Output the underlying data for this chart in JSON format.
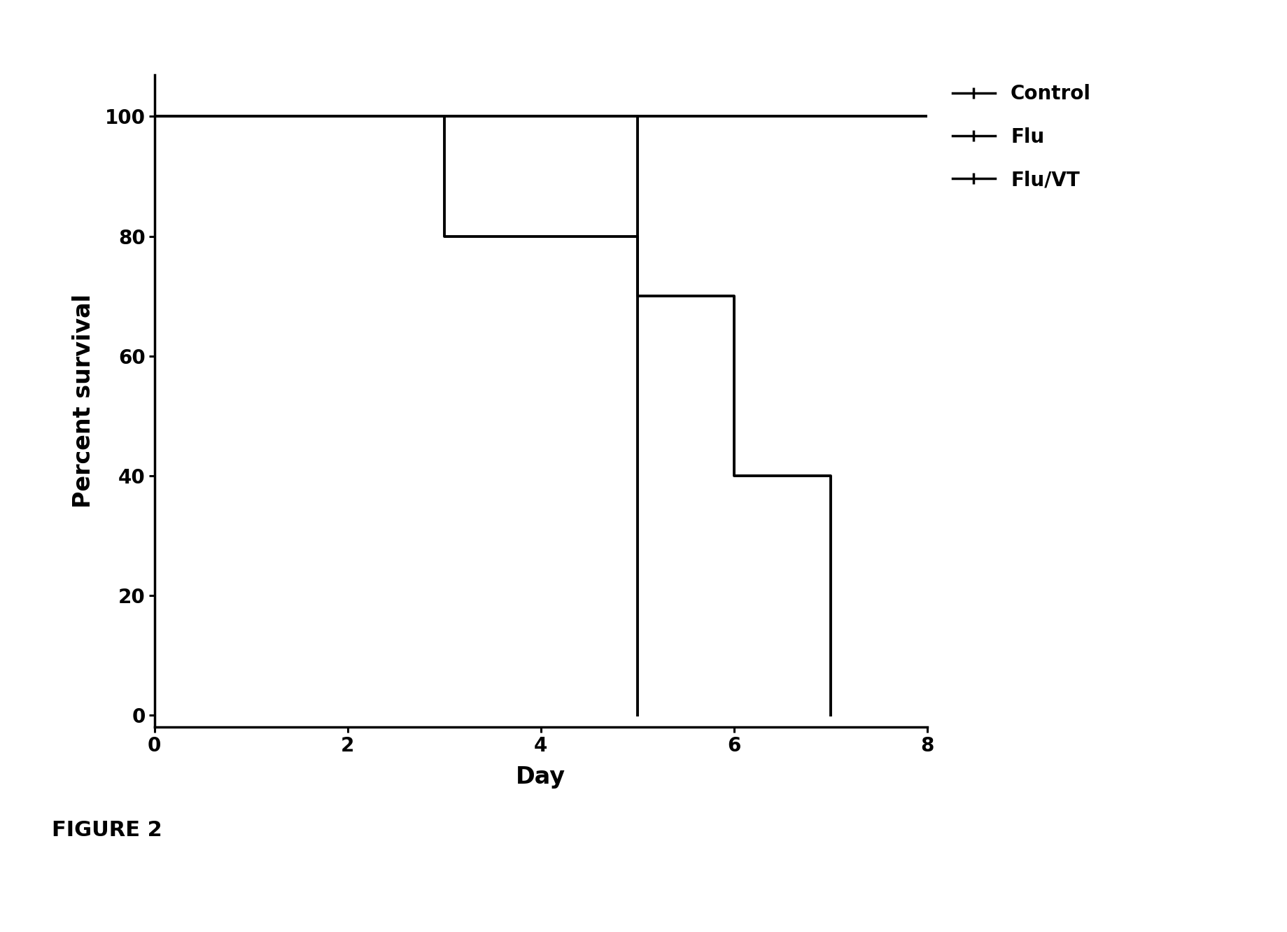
{
  "xlabel": "Day",
  "ylabel": "Percent survival",
  "figure_caption": "FIGURE 2",
  "xlim": [
    0,
    8
  ],
  "ylim": [
    -2,
    107
  ],
  "yticks": [
    0,
    20,
    40,
    60,
    80,
    100
  ],
  "xticks": [
    0,
    2,
    4,
    6,
    8
  ],
  "control": {
    "x": [
      0,
      8
    ],
    "y": [
      100,
      100
    ],
    "label": "Control",
    "color": "#000000",
    "linewidth": 2.8
  },
  "flu": {
    "x": [
      0,
      3,
      3,
      5,
      5
    ],
    "y": [
      100,
      100,
      80,
      80,
      0
    ],
    "label": "Flu",
    "color": "#000000",
    "linewidth": 2.8
  },
  "flu_vt": {
    "x": [
      0,
      5,
      5,
      6,
      6,
      7,
      7
    ],
    "y": [
      100,
      100,
      70,
      70,
      40,
      40,
      0
    ],
    "label": "Flu/VT",
    "color": "#000000",
    "linewidth": 2.8
  },
  "background_color": "#ffffff",
  "tick_fontsize": 20,
  "label_fontsize": 24,
  "caption_fontsize": 22,
  "legend_fontsize": 20,
  "axis_linewidth": 2.5
}
